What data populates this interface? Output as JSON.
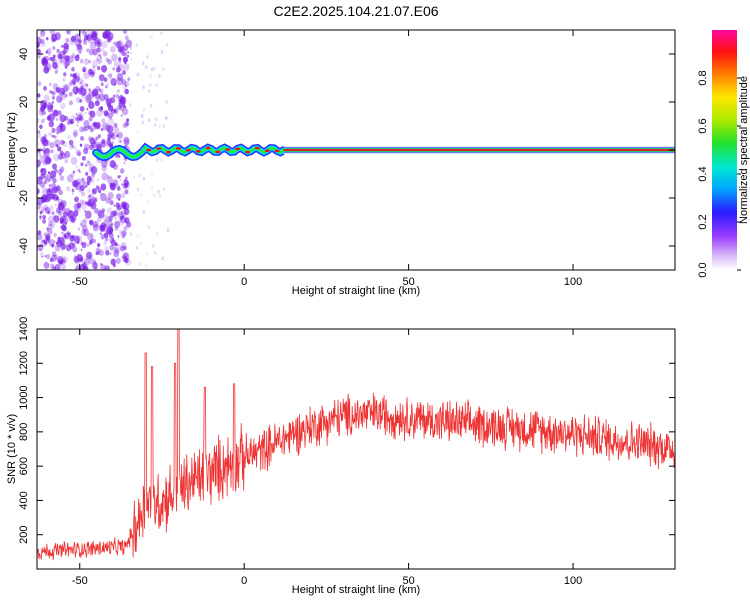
{
  "title": "C2E2.2025.104.21.07.E06",
  "chart_data": [
    {
      "type": "heatmap",
      "xlabel": "Height of straight line (km)",
      "ylabel": "Frequency (Hz)",
      "xlim": [
        -63,
        131
      ],
      "ylim": [
        -50,
        50
      ],
      "xticks": [
        "-50",
        "0",
        "50",
        "100"
      ],
      "yticks": [
        "-40",
        "-20",
        "0",
        "20",
        "40"
      ],
      "colorbar": {
        "label": "Normalized spectral amplitude",
        "range": [
          0,
          1
        ],
        "ticks": [
          "0.0",
          "0.2",
          "0.4",
          "0.6",
          "0.8"
        ]
      },
      "colors": {
        "noise": "#7b1fe8",
        "carrier_core": "#e8102a",
        "carrier_mid": "#22e84a",
        "carrier_edge": "#1a36ff"
      },
      "carrier_frequency_hz": 0,
      "noise_region_km": [
        -63,
        -35
      ]
    },
    {
      "type": "line",
      "xlabel": "Height of straight line (km)",
      "ylabel": "SNR (10 * v/v)",
      "xlim": [
        -63,
        131
      ],
      "ylim": [
        0,
        1400
      ],
      "xticks": [
        "-50",
        "0",
        "50",
        "100"
      ],
      "yticks": [
        "200",
        "400",
        "600",
        "800",
        "1000",
        "1200",
        "1400"
      ],
      "color": "#ee3333",
      "trend": {
        "x": [
          -63,
          -50,
          -36,
          -33,
          -30,
          -25,
          -20,
          -15,
          -10,
          -5,
          0,
          5,
          10,
          15,
          20,
          25,
          30,
          35,
          40,
          45,
          50,
          60,
          70,
          80,
          90,
          100,
          110,
          120,
          131
        ],
        "y": [
          100,
          115,
          130,
          250,
          380,
          400,
          460,
          520,
          560,
          610,
          650,
          690,
          740,
          790,
          830,
          860,
          890,
          900,
          905,
          895,
          880,
          860,
          845,
          830,
          810,
          790,
          760,
          735,
          700
        ]
      },
      "spikes": [
        {
          "x": -30,
          "y": 1260
        },
        {
          "x": -28,
          "y": 1180
        },
        {
          "x": -20,
          "y": 1420
        },
        {
          "x": -21,
          "y": 1200
        },
        {
          "x": -12,
          "y": 1060
        },
        {
          "x": -3,
          "y": 1080
        }
      ]
    }
  ]
}
